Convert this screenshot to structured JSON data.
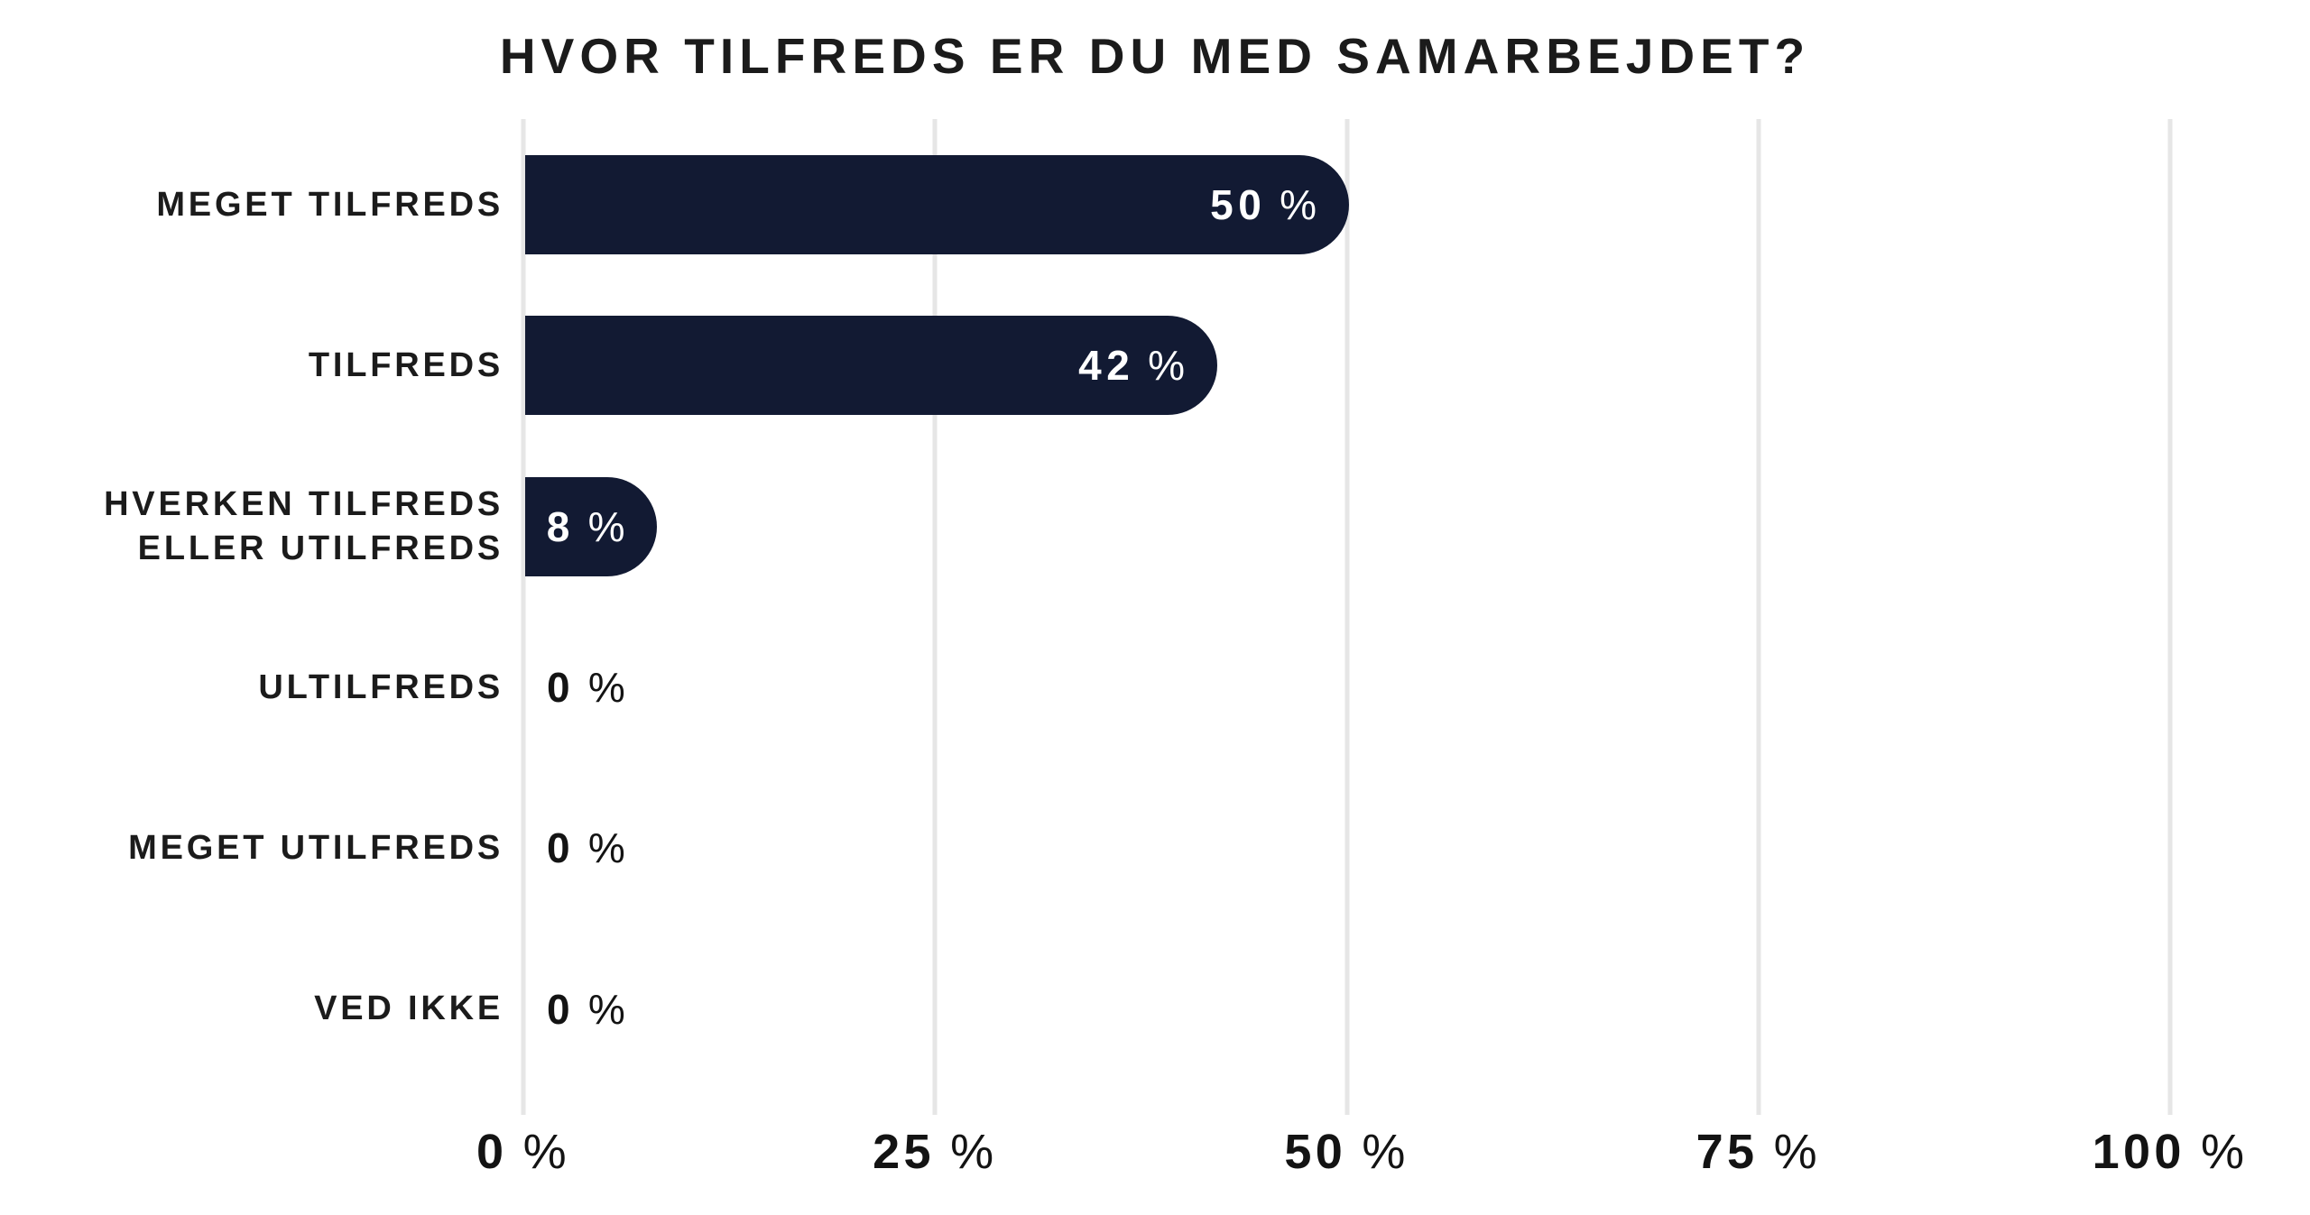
{
  "title": "HVOR TILFREDS ER DU MED SAMARBEJDET?",
  "percent_sign": "%",
  "colors": {
    "bar": "#121A33",
    "barLabel": "#FFFFFF",
    "text": "#1B1B1B",
    "axisText": "#131313",
    "gridline": "#E6E6E6",
    "background": "#FFFFFF"
  },
  "chart_data": {
    "type": "bar",
    "orientation": "horizontal",
    "title": "HVOR TILFREDS ER DU MED SAMARBEJDET?",
    "categories": [
      "MEGET TILFREDS",
      "TILFREDS",
      "HVERKEN TILFREDS ELLER UTILFREDS",
      "ULTILFREDS",
      "MEGET UTILFREDS",
      "VED IKKE"
    ],
    "values": [
      50,
      42,
      8,
      0,
      0,
      0
    ],
    "value_labels": [
      "50 %",
      "42 %",
      "8 %",
      "0 %",
      "0 %",
      "0 %"
    ],
    "xlabel": "",
    "ylabel": "",
    "xlim": [
      0,
      100
    ],
    "grid": true,
    "x_axis": {
      "ticks": [
        "0 %",
        "25 %",
        "50 %",
        "75 %",
        "100 %"
      ],
      "tick_nums": [
        "0",
        "25",
        "50",
        "75",
        "100"
      ],
      "tick_positions": [
        0,
        25,
        50,
        75,
        100
      ]
    },
    "rows": [
      {
        "label_lines": [
          "MEGET TILFREDS"
        ],
        "value": 50,
        "value_num": "50"
      },
      {
        "label_lines": [
          "TILFREDS"
        ],
        "value": 42,
        "value_num": "42"
      },
      {
        "label_lines": [
          "HVERKEN TILFREDS",
          "ELLER UTILFREDS"
        ],
        "value": 8,
        "value_num": "8"
      },
      {
        "label_lines": [
          "ULTILFREDS"
        ],
        "value": 0,
        "value_num": "0"
      },
      {
        "label_lines": [
          "MEGET UTILFREDS"
        ],
        "value": 0,
        "value_num": "0"
      },
      {
        "label_lines": [
          "VED IKKE"
        ],
        "value": 0,
        "value_num": "0"
      }
    ]
  }
}
